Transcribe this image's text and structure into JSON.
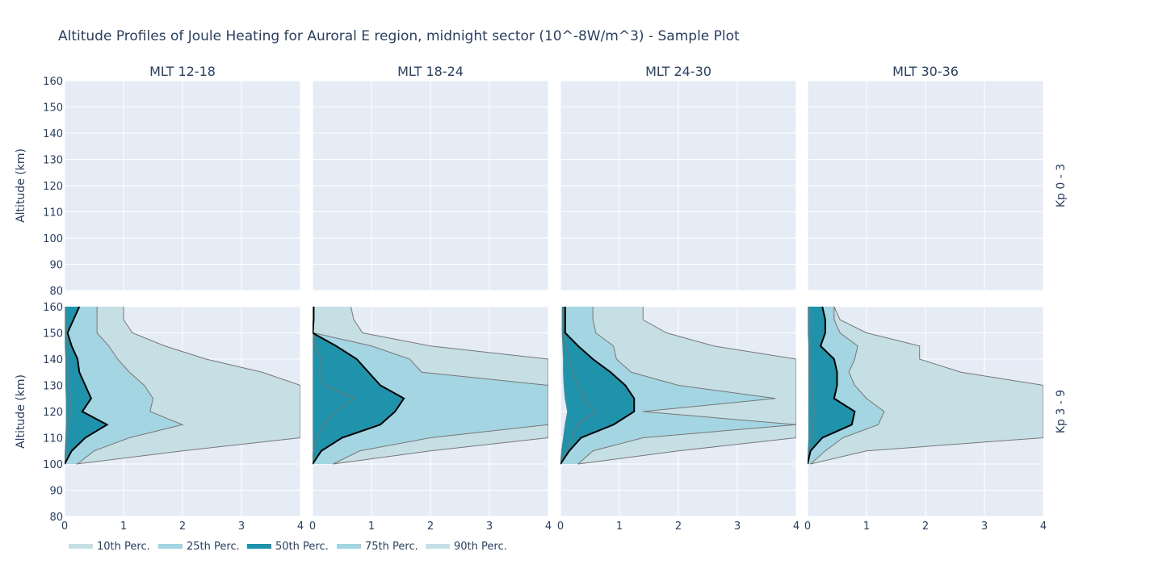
{
  "chart_data": {
    "type": "area",
    "title": "Altitude Profiles of Joule Heating for Auroral E region, midnight sector (10^-8W/m^3) - Sample Plot",
    "ylabel": "Altitude (km)",
    "xlim": [
      0,
      4
    ],
    "ylim": [
      80,
      160
    ],
    "xticks": [
      "0",
      "1",
      "2",
      "3",
      "4"
    ],
    "yticks": [
      "80",
      "90",
      "100",
      "110",
      "120",
      "130",
      "140",
      "150",
      "160"
    ],
    "grid": true,
    "legend_position": "bottom-left",
    "columns": [
      "MLT 12-18",
      "MLT 18-24",
      "MLT 24-30",
      "MLT 30-36"
    ],
    "rows": [
      "Kp 0 - 3",
      "Kp 3 - 9"
    ],
    "legend": [
      {
        "name": "10th Perc.",
        "color": "#c6dfe5"
      },
      {
        "name": "25th Perc.",
        "color": "#a3d5e2"
      },
      {
        "name": "50th Perc.",
        "color": "#1e93ab"
      },
      {
        "name": "75th Perc.",
        "color": "#a3d5e2"
      },
      {
        "name": "90th Perc.",
        "color": "#c6dfe5"
      }
    ],
    "colors": {
      "band_outer": "#c6dfe5",
      "band_inner": "#a3d5e2",
      "band_core": "#1e93ab",
      "median_line": "#000000",
      "edge_line": "#777777",
      "plot_bg": "#e5ecf6",
      "grid": "#ffffff"
    },
    "altitudes": [
      100,
      105,
      110,
      115,
      120,
      125,
      130,
      135,
      140,
      145,
      150,
      155,
      160
    ],
    "panels": [
      {
        "column": "MLT 12-18",
        "row": "Kp 0 - 3",
        "series": []
      },
      {
        "column": "MLT 18-24",
        "row": "Kp 0 - 3",
        "series": []
      },
      {
        "column": "MLT 24-30",
        "row": "Kp 0 - 3",
        "series": []
      },
      {
        "column": "MLT 30-36",
        "row": "Kp 0 - 3",
        "series": []
      },
      {
        "column": "MLT 12-18",
        "row": "Kp 3 - 9",
        "series": [
          {
            "name": "10th Perc.",
            "values": [
              0.0,
              0.01,
              0.02,
              0.03,
              0.03,
              0.03,
              0.02,
              0.02,
              0.02,
              0.01,
              0.01,
              0.01,
              0.01
            ]
          },
          {
            "name": "25th Perc.",
            "values": [
              0.0,
              0.04,
              0.06,
              0.08,
              0.12,
              0.1,
              0.08,
              0.06,
              0.06,
              0.04,
              0.03,
              0.02,
              0.02
            ]
          },
          {
            "name": "50th Perc.",
            "values": [
              0.0,
              0.12,
              0.35,
              0.72,
              0.3,
              0.45,
              0.35,
              0.25,
              0.22,
              0.12,
              0.05,
              0.15,
              0.25
            ]
          },
          {
            "name": "75th Perc.",
            "values": [
              0.22,
              0.5,
              1.1,
              2.0,
              1.45,
              1.5,
              1.35,
              1.1,
              0.9,
              0.75,
              0.55,
              0.55,
              0.55
            ]
          },
          {
            "name": "90th Perc.",
            "values": [
              0.2,
              2.0,
              4.0,
              4.0,
              4.0,
              4.0,
              4.0,
              3.35,
              2.4,
              1.7,
              1.15,
              1.0,
              1.0
            ]
          }
        ]
      },
      {
        "column": "MLT 18-24",
        "row": "Kp 3 - 9",
        "series": [
          {
            "name": "10th Perc.",
            "values": [
              0.0,
              0.01,
              0.01,
              0.01,
              0.01,
              0.01,
              0.01,
              0.01,
              0.01,
              0.01,
              0.01,
              0.01,
              0.01
            ]
          },
          {
            "name": "25th Perc.",
            "values": [
              0.0,
              0.03,
              0.08,
              0.2,
              0.4,
              0.72,
              0.2,
              0.12,
              0.15,
              0.05,
              0.02,
              0.02,
              0.02
            ]
          },
          {
            "name": "50th Perc.",
            "values": [
              0.0,
              0.15,
              0.5,
              1.15,
              1.4,
              1.55,
              1.15,
              0.95,
              0.75,
              0.4,
              0.0,
              0.02,
              0.02
            ]
          },
          {
            "name": "75th Perc.",
            "values": [
              0.35,
              0.8,
              2.0,
              4.0,
              4.0,
              4.0,
              4.0,
              1.85,
              1.65,
              1.0,
              0.02,
              0.02,
              0.02
            ]
          },
          {
            "name": "90th Perc.",
            "values": [
              0.35,
              2.0,
              4.0,
              4.0,
              4.0,
              4.0,
              4.0,
              4.0,
              4.0,
              2.0,
              0.85,
              0.7,
              0.65
            ]
          }
        ]
      },
      {
        "column": "MLT 24-30",
        "row": "Kp 3 - 9",
        "series": [
          {
            "name": "10th Perc.",
            "values": [
              0.0,
              0.02,
              0.05,
              0.08,
              0.12,
              0.08,
              0.06,
              0.05,
              0.05,
              0.04,
              0.03,
              0.03,
              0.03
            ]
          },
          {
            "name": "25th Perc.",
            "values": [
              0.0,
              0.1,
              0.2,
              0.3,
              0.6,
              0.4,
              0.3,
              0.22,
              0.15,
              0.1,
              0.08,
              0.06,
              0.06
            ]
          },
          {
            "name": "50th Perc.",
            "values": [
              0.0,
              0.15,
              0.35,
              0.9,
              1.25,
              1.25,
              1.1,
              0.85,
              0.55,
              0.3,
              0.08,
              0.08,
              0.08
            ]
          },
          {
            "name": "75th Perc.",
            "values": [
              0.3,
              0.55,
              1.4,
              4.0,
              1.4,
              3.65,
              2.0,
              1.2,
              0.95,
              0.9,
              0.6,
              0.55,
              0.55
            ]
          },
          {
            "name": "90th Perc.",
            "values": [
              0.3,
              2.0,
              4.0,
              4.0,
              4.0,
              4.0,
              4.0,
              4.0,
              4.0,
              2.6,
              1.8,
              1.4,
              1.4
            ]
          }
        ]
      },
      {
        "column": "MLT 30-36",
        "row": "Kp 3 - 9",
        "series": [
          {
            "name": "10th Perc.",
            "values": [
              0.0,
              0.01,
              0.02,
              0.02,
              0.02,
              0.02,
              0.02,
              0.02,
              0.02,
              0.02,
              0.01,
              0.01,
              0.01
            ]
          },
          {
            "name": "25th Perc.",
            "values": [
              0.0,
              0.05,
              0.08,
              0.1,
              0.12,
              0.1,
              0.08,
              0.06,
              0.05,
              0.05,
              0.04,
              0.04,
              0.04
            ]
          },
          {
            "name": "50th Perc.",
            "values": [
              0.0,
              0.05,
              0.25,
              0.75,
              0.8,
              0.45,
              0.5,
              0.5,
              0.45,
              0.22,
              0.3,
              0.3,
              0.25
            ]
          },
          {
            "name": "75th Perc.",
            "values": [
              0.05,
              0.3,
              0.6,
              1.2,
              1.3,
              1.0,
              0.8,
              0.7,
              0.8,
              0.85,
              0.55,
              0.45,
              0.45
            ]
          },
          {
            "name": "90th Perc.",
            "values": [
              0.05,
              1.0,
              4.0,
              4.0,
              4.0,
              4.0,
              4.0,
              2.6,
              1.9,
              1.9,
              1.0,
              0.55,
              0.45
            ]
          }
        ]
      }
    ]
  }
}
